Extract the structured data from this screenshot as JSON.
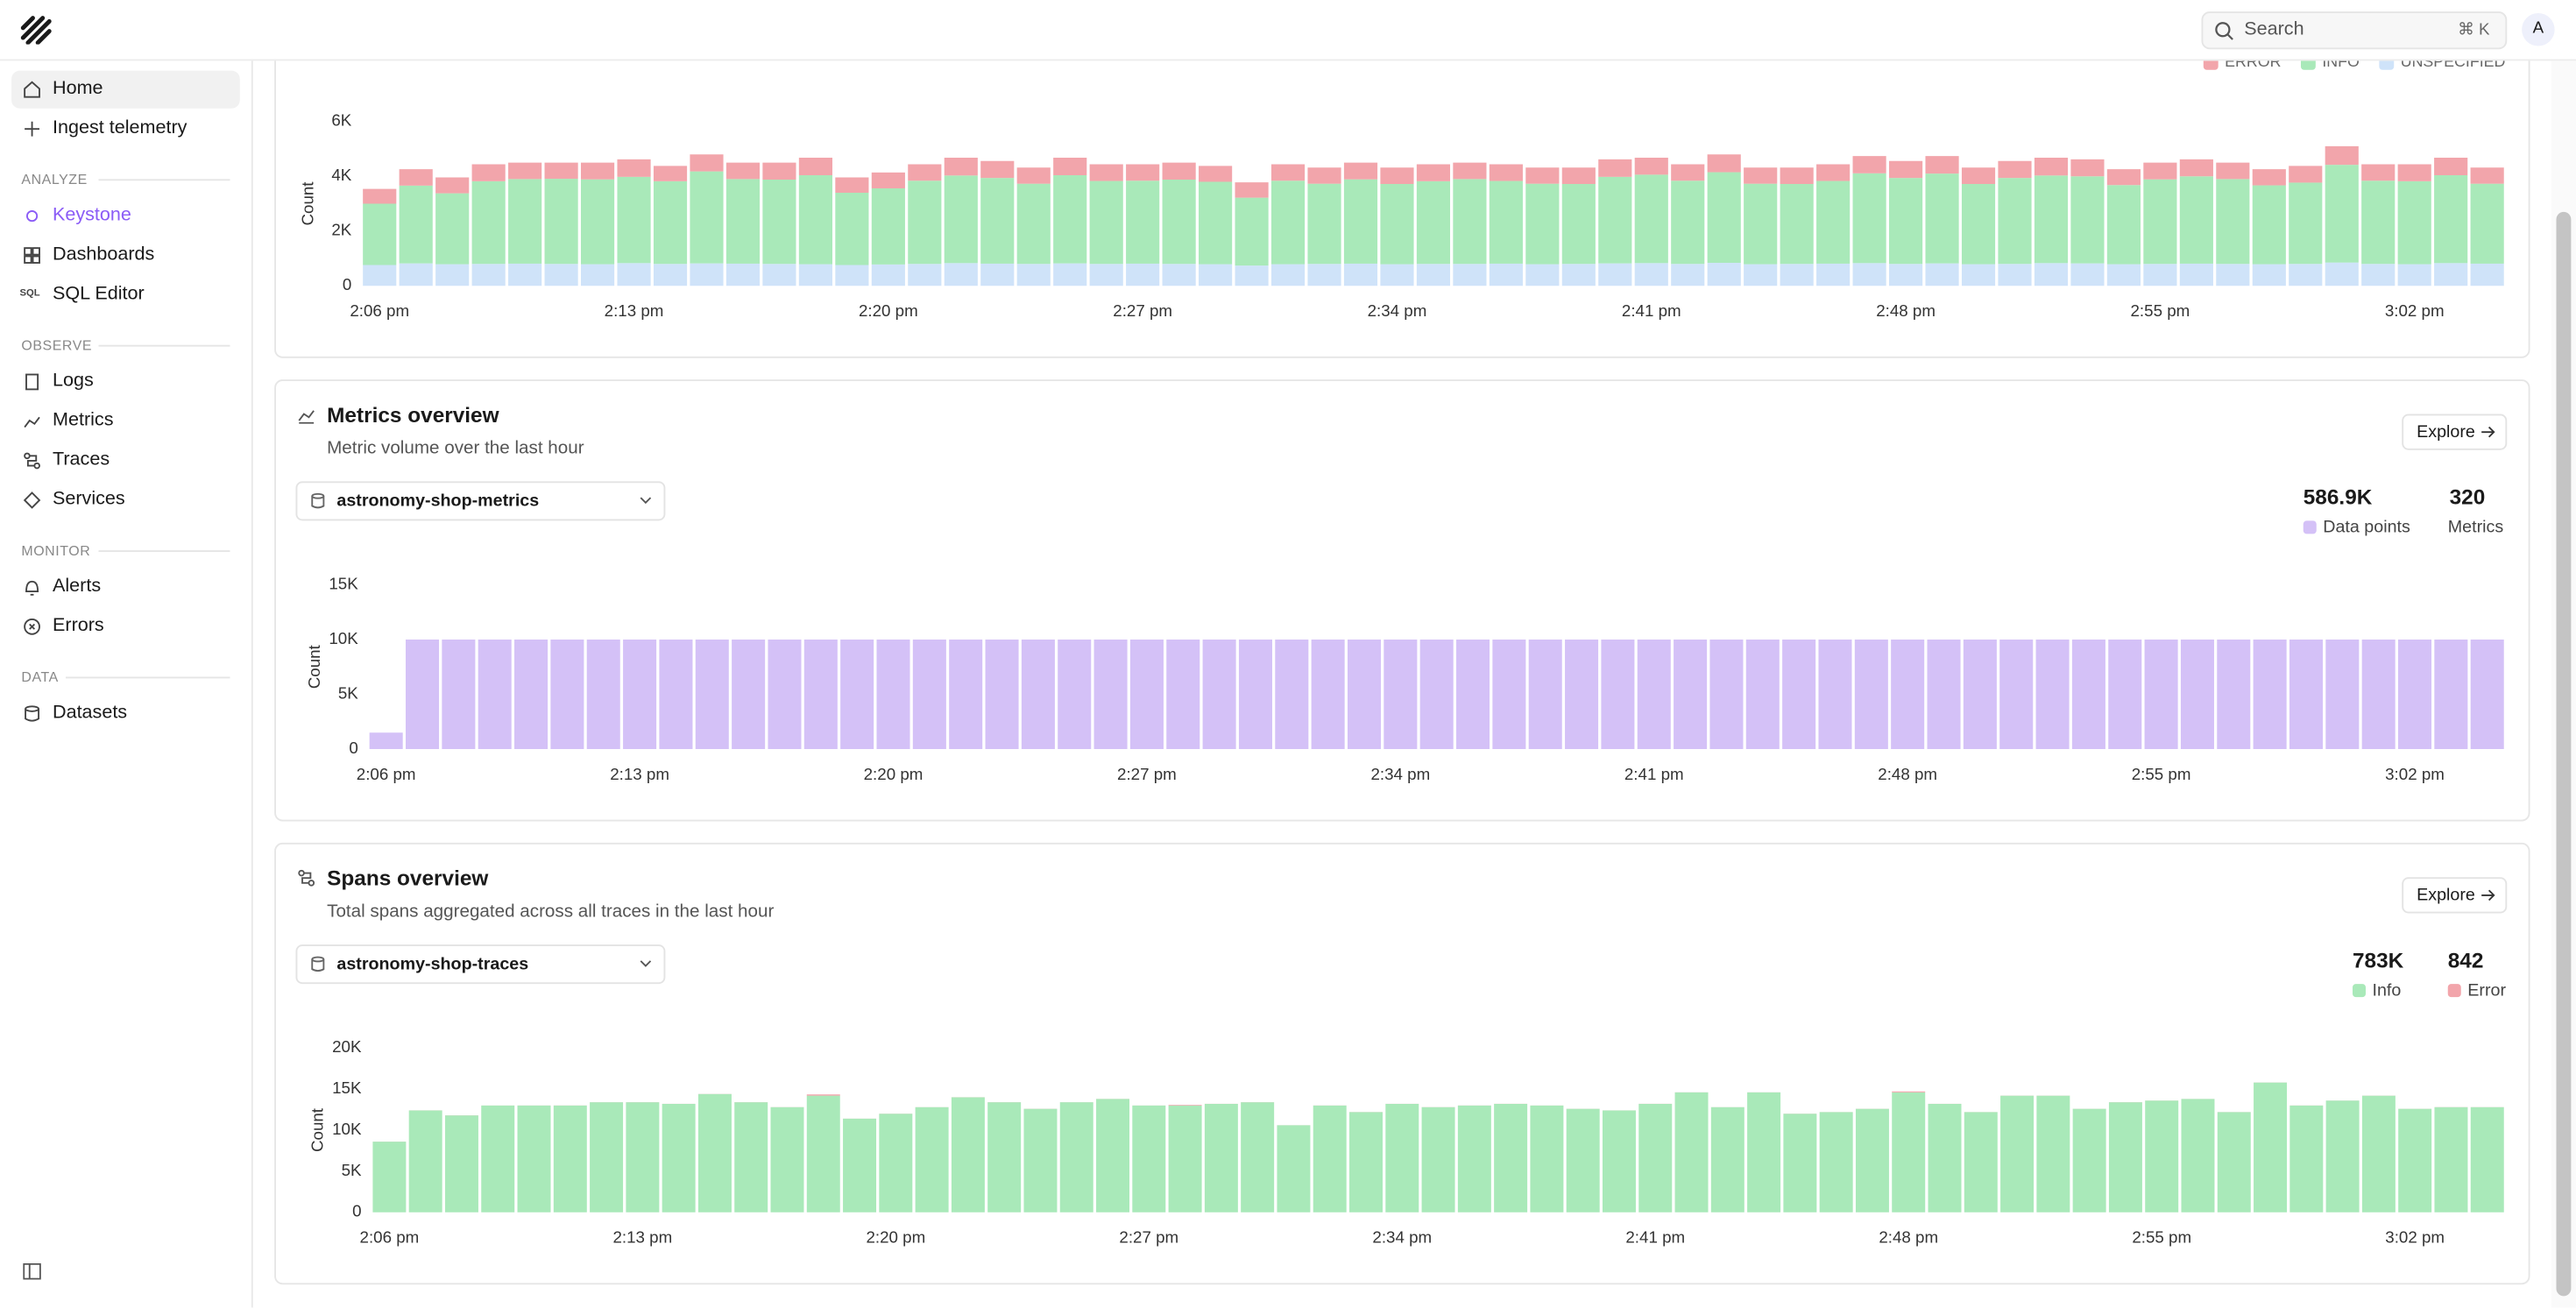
{
  "topbar": {
    "search": "Search",
    "shortcut": "⌘ K",
    "avatar": "A"
  },
  "sidebar": {
    "items": [
      "Home",
      "Ingest telemetry"
    ],
    "sql_icon_label": "SQL",
    "sections": [
      {
        "title": "ANALYZE",
        "items": [
          "Keystone",
          "Dashboards",
          "SQL Editor"
        ]
      },
      {
        "title": "OBSERVE",
        "items": [
          "Logs",
          "Metrics",
          "Traces",
          "Services"
        ]
      },
      {
        "title": "MONITOR",
        "items": [
          "Alerts",
          "Errors"
        ]
      },
      {
        "title": "DATA",
        "items": [
          "Datasets"
        ]
      }
    ]
  },
  "panels": [
    {
      "dataset": "astronomy-shop-metrics",
      "button": "Explore",
      "stats": [
        {
          "value": "586.9K"
        },
        {
          "value": "320",
          "label": "Metrics"
        }
      ]
    },
    {
      "dataset": "astronomy-shop-traces",
      "button": "Explore",
      "stats": [
        {
          "value": "783K"
        },
        {
          "value": "842"
        }
      ]
    }
  ],
  "chart_data": [
    {
      "type": "bar",
      "stacked": true,
      "y_label": "Count",
      "categories": [
        "2:06 pm",
        null,
        null,
        null,
        null,
        null,
        null,
        "2:13 pm",
        null,
        null,
        null,
        null,
        null,
        null,
        "2:20 pm",
        null,
        null,
        null,
        null,
        null,
        null,
        "2:27 pm",
        null,
        null,
        null,
        null,
        null,
        null,
        "2:34 pm",
        null,
        null,
        null,
        null,
        null,
        null,
        "2:41 pm",
        null,
        null,
        null,
        null,
        null,
        null,
        "2:48 pm",
        null,
        null,
        null,
        null,
        null,
        null,
        "2:55 pm",
        null,
        null,
        null,
        null,
        null,
        null,
        "3:02 pm",
        null,
        null
      ],
      "series": [
        {
          "name": "UNSPECIFIED",
          "color": "#cfe3f9",
          "values": [
            760,
            820,
            790,
            800,
            810,
            800,
            790,
            830,
            800,
            820,
            810,
            800,
            790,
            760,
            780,
            800,
            830,
            810,
            800,
            820,
            800,
            810,
            800,
            790,
            740,
            790,
            800,
            810,
            790,
            800,
            800,
            810,
            790,
            800,
            820,
            830,
            800,
            840,
            790,
            800,
            810,
            830,
            800,
            820,
            790,
            800,
            830,
            820,
            790,
            800,
            810,
            800,
            790,
            800,
            850,
            800,
            790,
            830,
            810
          ]
        },
        {
          "name": "INFO",
          "color": "#a9e9b9",
          "values": [
            2240,
            2840,
            2590,
            3020,
            3090,
            3110,
            3100,
            3150,
            3020,
            3360,
            3090,
            3080,
            3250,
            2640,
            2780,
            3040,
            3200,
            3130,
            2930,
            3220,
            3030,
            3030,
            3080,
            3010,
            2480,
            3050,
            2930,
            3080,
            2930,
            3020,
            3100,
            3020,
            2940,
            2920,
            3160,
            3230,
            3040,
            3310,
            2940,
            2920,
            3020,
            3280,
            3140,
            3280,
            2930,
            3140,
            3200,
            3180,
            2890,
            3090,
            3190,
            3100,
            2880,
            2970,
            3570,
            3040,
            3030,
            3210,
            2920
          ]
        },
        {
          "name": "ERROR",
          "color": "#f2a5ab",
          "values": [
            540,
            600,
            580,
            620,
            600,
            590,
            610,
            640,
            560,
            620,
            600,
            620,
            640,
            560,
            580,
            600,
            650,
            620,
            590,
            640,
            610,
            600,
            620,
            580,
            560,
            600,
            590,
            610,
            600,
            620,
            600,
            610,
            590,
            600,
            640,
            620,
            600,
            650,
            590,
            600,
            610,
            630,
            620,
            640,
            600,
            620,
            650,
            620,
            580,
            610,
            620,
            600,
            590,
            610,
            680,
            600,
            620,
            640,
            590
          ]
        }
      ],
      "ylim": [
        0,
        6000
      ],
      "yticks": [
        0,
        {
          "value": 2000,
          "label": "2K"
        },
        {
          "value": 4000,
          "label": "4K"
        },
        {
          "value": 6000,
          "label": "6K"
        }
      ]
    },
    {
      "type": "bar",
      "stacked": false,
      "title": "Metrics overview",
      "subtitle": "Metric volume over the last hour",
      "y_label": "Count",
      "categories": [
        "2:06 pm",
        null,
        null,
        null,
        null,
        null,
        null,
        "2:13 pm",
        null,
        null,
        null,
        null,
        null,
        null,
        "2:20 pm",
        null,
        null,
        null,
        null,
        null,
        null,
        "2:27 pm",
        null,
        null,
        null,
        null,
        null,
        null,
        "2:34 pm",
        null,
        null,
        null,
        null,
        null,
        null,
        "2:41 pm",
        null,
        null,
        null,
        null,
        null,
        null,
        "2:48 pm",
        null,
        null,
        null,
        null,
        null,
        null,
        "2:55 pm",
        null,
        null,
        null,
        null,
        null,
        null,
        "3:02 pm",
        null,
        null
      ],
      "series": [
        {
          "name": "Data points",
          "color": "#d4c1f7",
          "values": [
            1500,
            10000,
            10000,
            10000,
            10000,
            10000,
            10000,
            10000,
            10000,
            10000,
            10000,
            10000,
            10000,
            10000,
            10000,
            10000,
            10000,
            10000,
            10000,
            10000,
            10000,
            10000,
            10000,
            10000,
            10000,
            10000,
            10000,
            10000,
            10000,
            10000,
            10000,
            10000,
            10000,
            10000,
            10000,
            10000,
            10000,
            10000,
            10000,
            10000,
            10000,
            10000,
            10000,
            10000,
            10000,
            10000,
            10000,
            10000,
            10000,
            10000,
            10000,
            10000,
            10000,
            10000,
            10000,
            10000,
            10000,
            10000,
            10000
          ]
        }
      ],
      "ylim": [
        0,
        15000
      ],
      "yticks": [
        0,
        {
          "value": 5000,
          "label": "5K"
        },
        {
          "value": 10000,
          "label": "10K"
        },
        {
          "value": 15000,
          "label": "15K"
        }
      ]
    },
    {
      "type": "bar",
      "stacked": true,
      "title": "Spans overview",
      "subtitle": "Total spans aggregated across all traces in the last hour",
      "y_label": "Count",
      "categories": [
        "2:06 pm",
        null,
        null,
        null,
        null,
        null,
        null,
        "2:13 pm",
        null,
        null,
        null,
        null,
        null,
        null,
        "2:20 pm",
        null,
        null,
        null,
        null,
        null,
        null,
        "2:27 pm",
        null,
        null,
        null,
        null,
        null,
        null,
        "2:34 pm",
        null,
        null,
        null,
        null,
        null,
        null,
        "2:41 pm",
        null,
        null,
        null,
        null,
        null,
        null,
        "2:48 pm",
        null,
        null,
        null,
        null,
        null,
        null,
        "2:55 pm",
        null,
        null,
        null,
        null,
        null,
        null,
        "3:02 pm",
        null,
        null
      ],
      "series": [
        {
          "name": "Info",
          "color": "#a9e9b9",
          "values": [
            8600,
            12400,
            11800,
            13000,
            13000,
            13000,
            13400,
            13400,
            13200,
            14400,
            13400,
            12800,
            14200,
            11400,
            12000,
            12800,
            14000,
            13400,
            12600,
            13400,
            13800,
            13000,
            13000,
            13200,
            13400,
            10600,
            13000,
            12200,
            13200,
            12800,
            13000,
            13200,
            13000,
            12600,
            12400,
            13200,
            14600,
            12800,
            14600,
            12000,
            12200,
            12600,
            14600,
            13200,
            12200,
            14200,
            14200,
            12600,
            13400,
            13600,
            13800,
            12200,
            15800,
            13000,
            13600,
            14200,
            12600,
            12800,
            12800
          ]
        },
        {
          "name": "Error",
          "color": "#f2a5ab",
          "values": [
            8,
            10,
            12,
            6,
            9,
            11,
            7,
            10,
            8,
            12,
            9,
            10,
            150,
            7,
            11,
            8,
            10,
            9,
            12,
            6,
            10,
            8,
            80,
            9,
            11,
            7,
            10,
            12,
            8,
            9,
            10,
            11,
            7,
            9,
            8,
            12,
            10,
            6,
            9,
            11,
            8,
            10,
            120,
            9,
            7,
            11,
            10,
            8,
            12,
            9,
            6,
            10,
            9,
            11,
            8,
            10,
            7,
            12,
            9
          ]
        }
      ],
      "ylim": [
        0,
        20000
      ],
      "yticks": [
        0,
        {
          "value": 5000,
          "label": "5K"
        },
        {
          "value": 10000,
          "label": "10K"
        },
        {
          "value": 15000,
          "label": "15K"
        },
        {
          "value": 20000,
          "label": "20K"
        }
      ]
    }
  ]
}
